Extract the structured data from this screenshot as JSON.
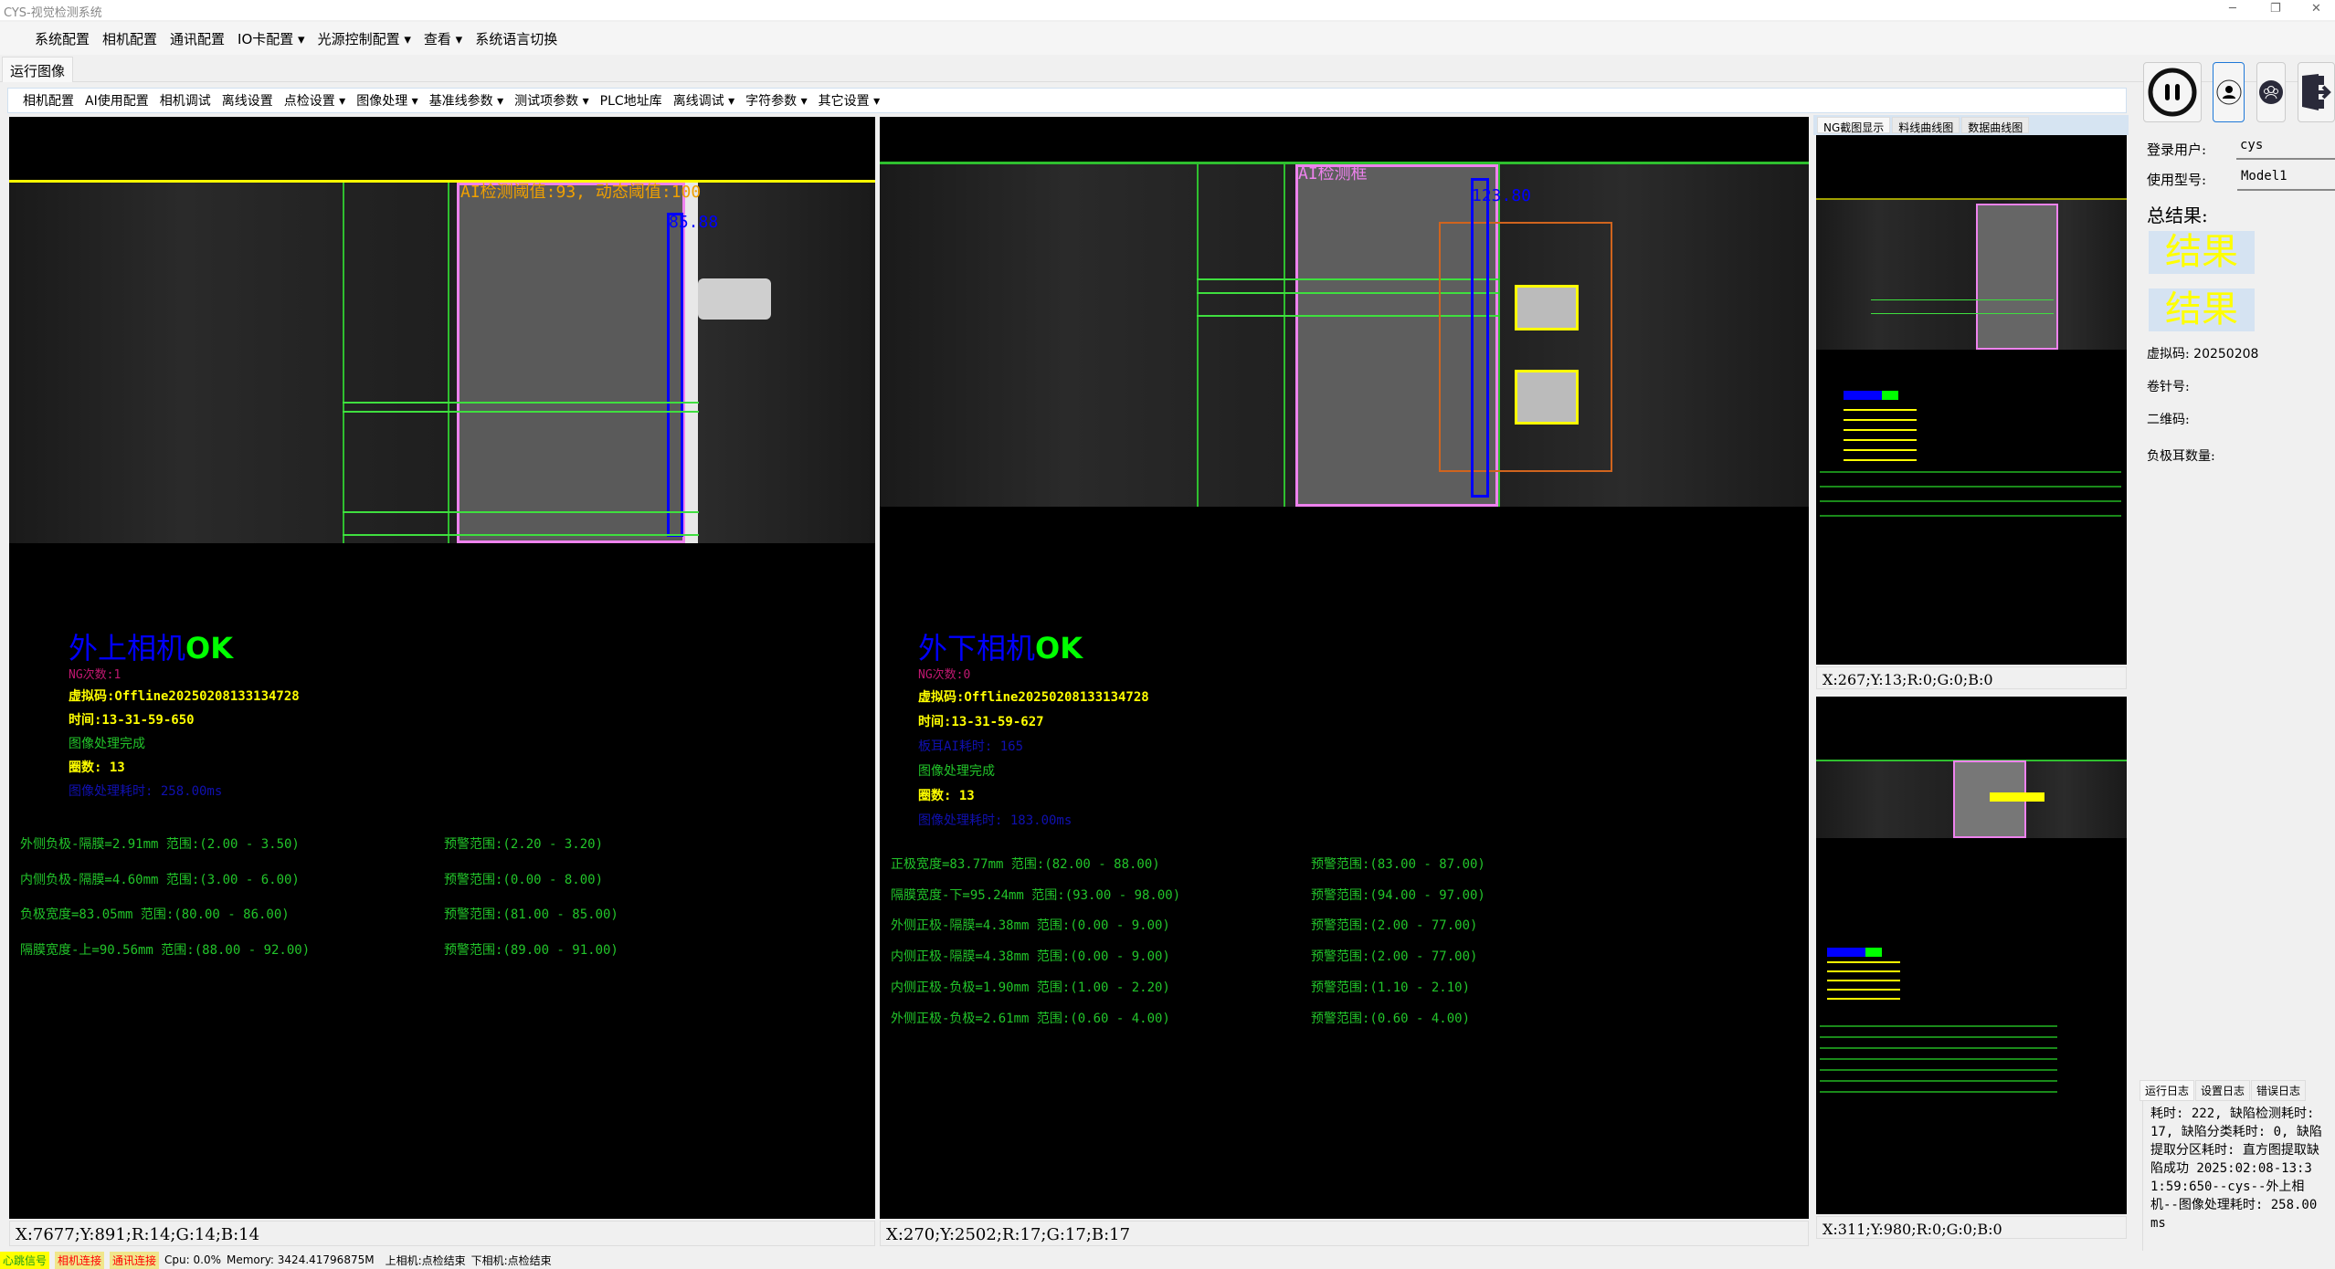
{
  "window": {
    "title": "CYS-视觉检测系统"
  },
  "menu": [
    "系统配置",
    "相机配置",
    "通讯配置",
    "IO卡配置 ▾",
    "光源控制配置 ▾",
    "查看 ▾",
    "系统语言切换"
  ],
  "main_tab": "运行图像",
  "toolbar": [
    "相机配置",
    "AI使用配置",
    "相机调试",
    "离线设置",
    "点检设置 ▾",
    "图像处理 ▾",
    "基准线参数 ▾",
    "测试项参数 ▾",
    "PLC地址库",
    "离线调试 ▾",
    "字符参数 ▾",
    "其它设置 ▾"
  ],
  "left_camera": {
    "overlay_threshold": "AI检测阈值:93, 动态阈值:100",
    "overlay_value": "85.88",
    "title": "外上相机",
    "status": "OK",
    "ng_count": "NG次数:1",
    "virtual_code": "虚拟码:Offline20250208133134728",
    "time": "时间:13-31-59-650",
    "processing": "图像处理完成",
    "laps": "圈数: 13",
    "elapsed": "图像处理耗时: 258.00ms",
    "measurements": [
      {
        "value": "外侧负极-隔膜=2.91mm 范围:(2.00 - 3.50)",
        "warn": "预警范围:(2.20 - 3.20)"
      },
      {
        "value": "内侧负极-隔膜=4.60mm 范围:(3.00 - 6.00)",
        "warn": "预警范围:(0.00 - 8.00)"
      },
      {
        "value": "负极宽度=83.05mm 范围:(80.00 - 86.00)",
        "warn": "预警范围:(81.00 - 85.00)"
      },
      {
        "value": "隔膜宽度-上=90.56mm 范围:(88.00 - 92.00)",
        "warn": "预警范围:(89.00 - 91.00)"
      }
    ],
    "coord": "X:7677;Y:891;R:14;G:14;B:14"
  },
  "middle_camera": {
    "overlay_label": "AI检测框",
    "overlay_value": "123.80",
    "title": "外下相机",
    "status": "OK",
    "ng_count": "NG次数:0",
    "virtual_code": "虚拟码:Offline20250208133134728",
    "time": "时间:13-31-59-627",
    "ai_time": "板耳AI耗时: 165",
    "processing": "图像处理完成",
    "laps": "圈数: 13",
    "elapsed": "图像处理耗时: 183.00ms",
    "measurements": [
      {
        "value": "正极宽度=83.77mm 范围:(82.00 - 88.00)",
        "warn": "预警范围:(83.00 - 87.00)"
      },
      {
        "value": "隔膜宽度-下=95.24mm 范围:(93.00 - 98.00)",
        "warn": "预警范围:(94.00 - 97.00)"
      },
      {
        "value": "外侧正极-隔膜=4.38mm 范围:(0.00 - 9.00)",
        "warn": "预警范围:(2.00 - 77.00)"
      },
      {
        "value": "内侧正极-隔膜=4.38mm 范围:(0.00 - 9.00)",
        "warn": "预警范围:(2.00 - 77.00)"
      },
      {
        "value": "内侧正极-负极=1.90mm 范围:(1.00 - 2.20)",
        "warn": "预警范围:(1.10 - 2.10)"
      },
      {
        "value": "外侧正极-负极=2.61mm 范围:(0.60 - 4.00)",
        "warn": "预警范围:(0.60 - 4.00)"
      }
    ],
    "coord": "X:270;Y:2502;R:17;G:17;B:17"
  },
  "ng_panel": {
    "tabs": [
      "NG截图显示",
      "料线曲线图",
      "数据曲线图"
    ],
    "coord_top": "X:267;Y:13;R:0;G:0;B:0",
    "coord_bottom": "X:311;Y:980;R:0;G:0;B:0"
  },
  "sidebar": {
    "icons": [
      "pause-icon",
      "user-icon",
      "users-icon",
      "exit-icon"
    ],
    "login_user_label": "登录用户:",
    "login_user": "cys",
    "model_label": "使用型号:",
    "model": "Model1",
    "total_result_label": "总结果:",
    "result1": "结果",
    "result2": "结果",
    "virtual_code_label": "虚拟码:",
    "virtual_code": "20250208",
    "needle_label": "卷针号:",
    "qr_label": "二维码:",
    "tab_count_label": "负极耳数量:"
  },
  "log": {
    "tabs": [
      "运行日志",
      "设置日志",
      "错误日志"
    ],
    "text": "耗时: 222, 缺陷检测耗时: 17, 缺陷分类耗时: 0, 缺陷提取分区耗时: 直方图提取缺陷成功 2025:02:08-13:31:59:650--cys--外上相机--图像处理耗时: 258.00ms"
  },
  "status": {
    "heartbeat": "心跳信号",
    "camera_conn": "相机连接",
    "comm_conn": "通讯连接",
    "cpu": "Cpu: 0.0%",
    "memory": "Memory: 3424.41796875M",
    "upper": "上相机:点检结束",
    "lower": "下相机:点检结束"
  },
  "colors": {
    "ok": "#00ff00",
    "title_blue": "#0000ff",
    "measure": "#22c42a",
    "info": "#ffff00",
    "heartbeat_bg": "#ffff00",
    "conn_bg": "#f0e68c",
    "conn_text": "#ff0000"
  }
}
